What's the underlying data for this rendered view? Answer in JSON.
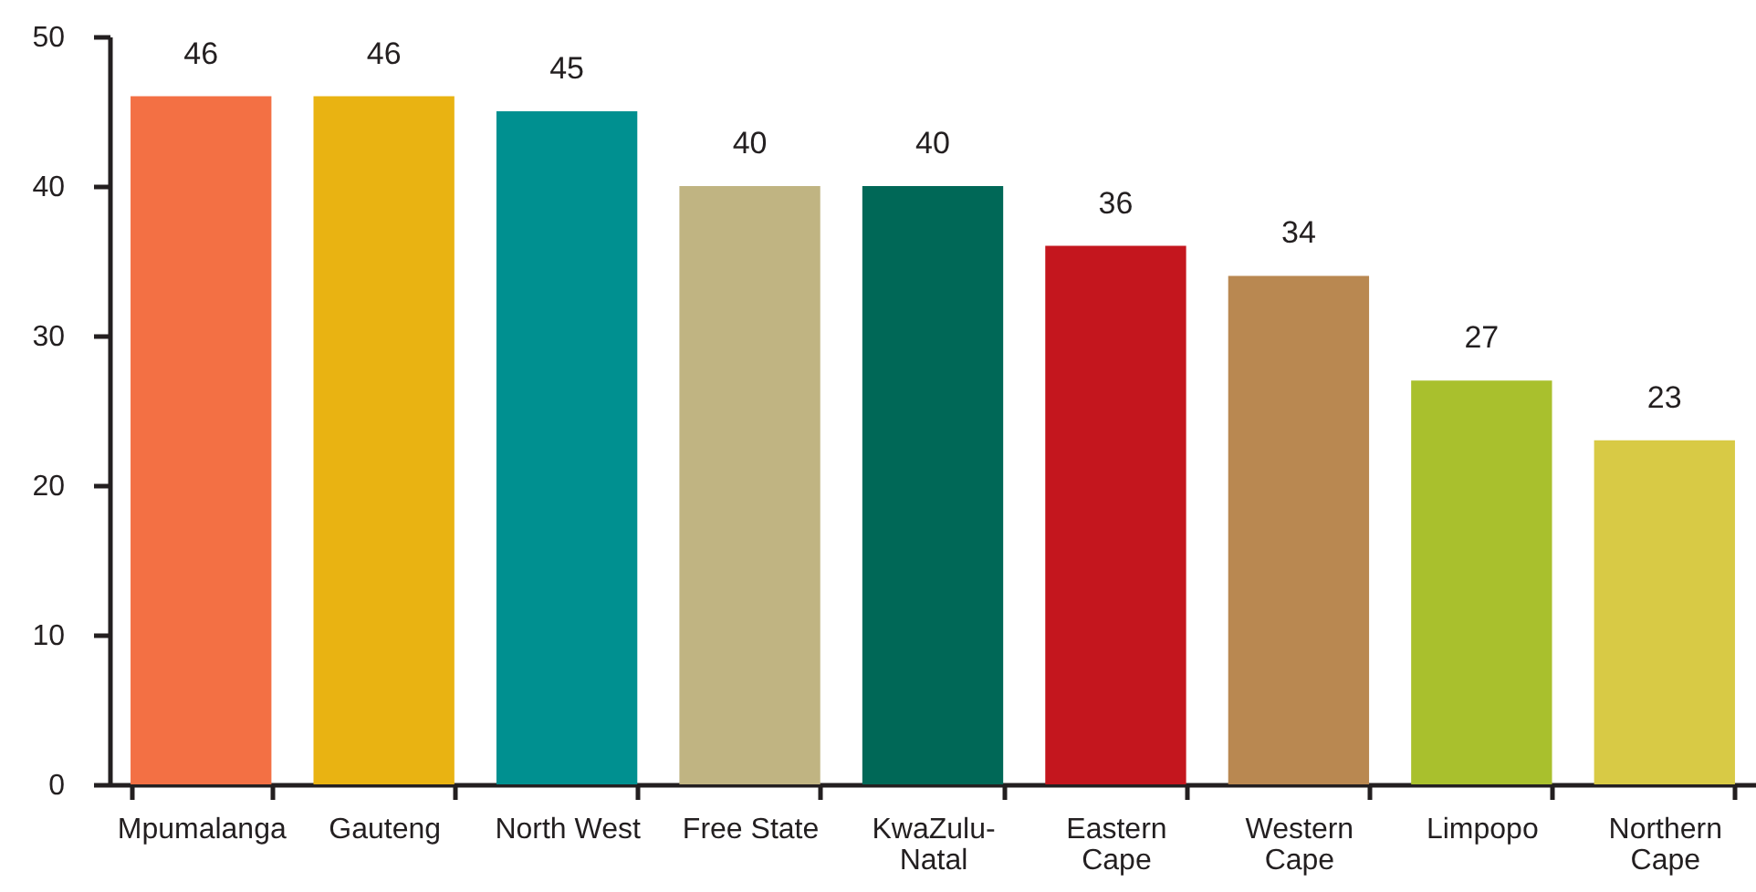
{
  "chart_data": {
    "type": "bar",
    "categories": [
      "Mpumalanga",
      "Gauteng",
      "North West",
      "Free State",
      "KwaZulu-Natal",
      "Eastern Cape",
      "Western Cape",
      "Limpopo",
      "Northern Cape"
    ],
    "values": [
      46,
      46,
      45,
      40,
      40,
      36,
      34,
      27,
      23
    ],
    "colors": [
      "#f37044",
      "#e9b312",
      "#009090",
      "#c0b482",
      "#006857",
      "#c4161e",
      "#b98851",
      "#a9c02d",
      "#d8ca45"
    ],
    "ylim": [
      0,
      50
    ],
    "yticks": [
      0,
      10,
      20,
      30,
      40,
      50
    ],
    "data_labels": true
  }
}
